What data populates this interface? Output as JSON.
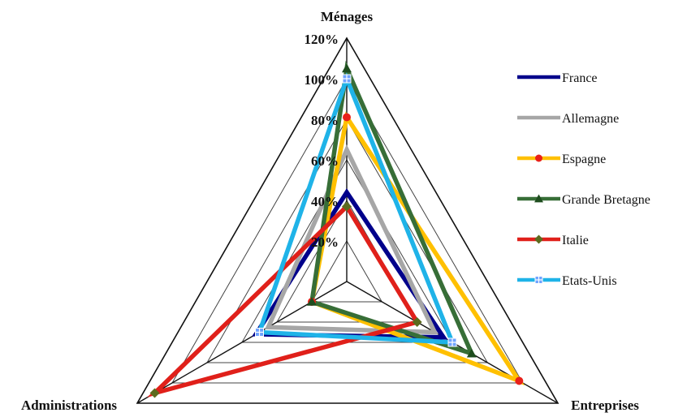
{
  "chart_data": {
    "type": "radar",
    "axes": [
      "Ménages",
      "Entreprises",
      "Administrations"
    ],
    "rlim": [
      0,
      1.2
    ],
    "ticks": [
      {
        "value": 0.2,
        "label": "20%"
      },
      {
        "value": 0.4,
        "label": "40%"
      },
      {
        "value": 0.6,
        "label": "60%"
      },
      {
        "value": 0.8,
        "label": "80%"
      },
      {
        "value": 1.0,
        "label": "100%"
      },
      {
        "value": 1.2,
        "label": "120%"
      }
    ],
    "grid": true,
    "legend": "right",
    "series": [
      {
        "name": "France",
        "color": "#00008b",
        "marker": "none",
        "values": [
          0.44,
          0.55,
          0.52
        ]
      },
      {
        "name": "Allemagne",
        "color": "#a6a6a6",
        "marker": "none",
        "values": [
          0.65,
          0.5,
          0.45
        ]
      },
      {
        "name": "Espagne",
        "color": "#ffc000",
        "marker": "circle",
        "markerColor": "#e8201a",
        "values": [
          0.81,
          0.98,
          0.2
        ]
      },
      {
        "name": "Grande Bretagne",
        "color": "#376e37",
        "marker": "triangle",
        "markerColor": "#1e4d1e",
        "values": [
          1.05,
          0.71,
          0.2
        ]
      },
      {
        "name": "Italie",
        "color": "#e0201a",
        "marker": "diamond",
        "markerColor": "#5c6b1e",
        "values": [
          0.37,
          0.4,
          1.1
        ]
      },
      {
        "name": "Etats-Unis",
        "color": "#1fb3e8",
        "marker": "square",
        "markerColor": "#6fa3ff",
        "values": [
          1.0,
          0.6,
          0.5
        ]
      }
    ]
  }
}
